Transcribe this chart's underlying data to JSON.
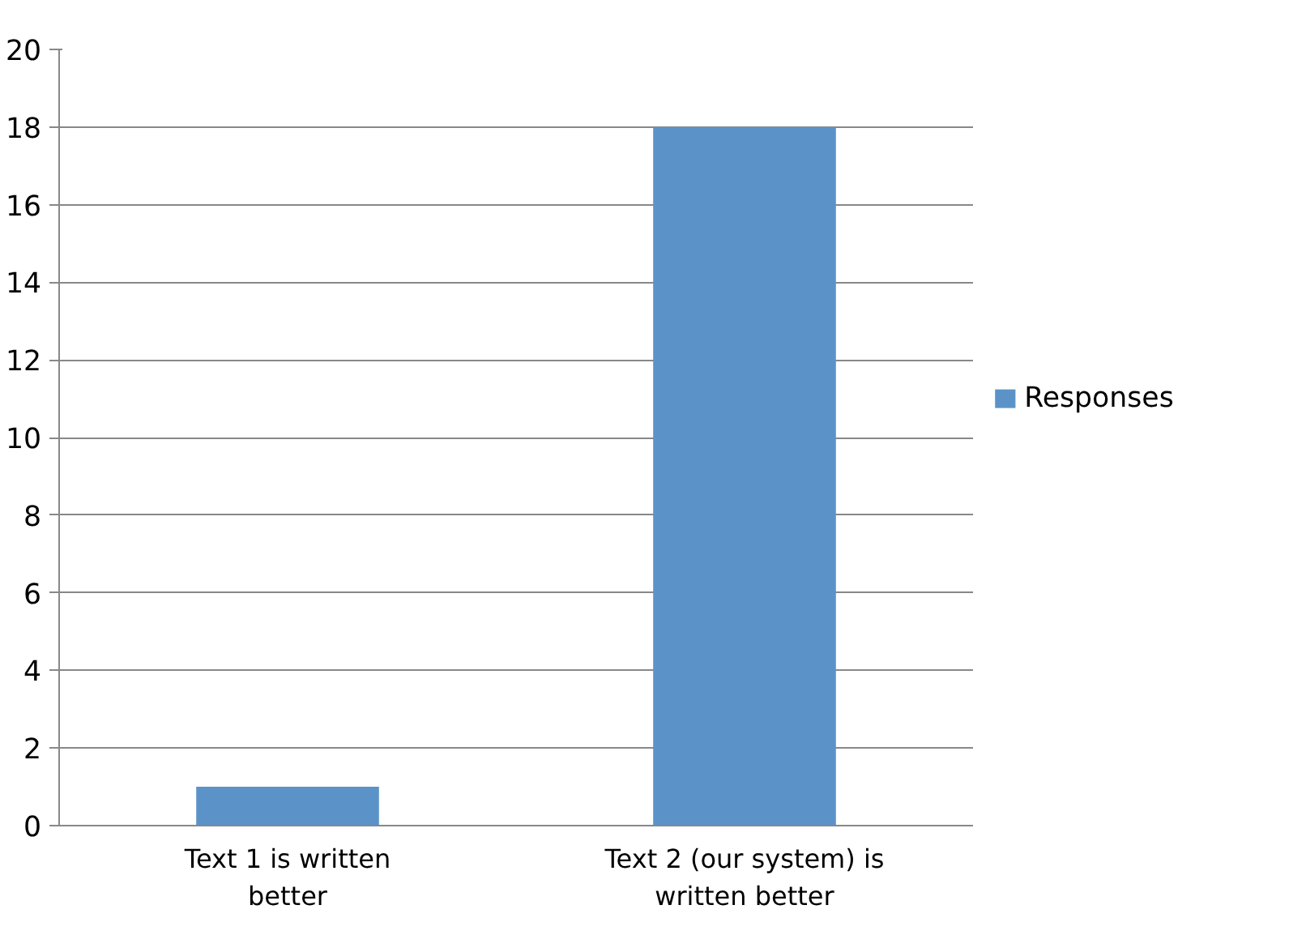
{
  "chart_data": {
    "type": "bar",
    "categories": [
      "Text 1 is written better",
      "Text 2 (our system) is written better"
    ],
    "series": [
      {
        "name": "Responses",
        "color": "#5b93c9",
        "values": [
          1,
          18
        ]
      }
    ],
    "ylim": [
      0,
      20
    ],
    "yticks": [
      0,
      2,
      4,
      6,
      8,
      10,
      12,
      14,
      16,
      18,
      20
    ],
    "grid": "y",
    "legend": "right"
  }
}
